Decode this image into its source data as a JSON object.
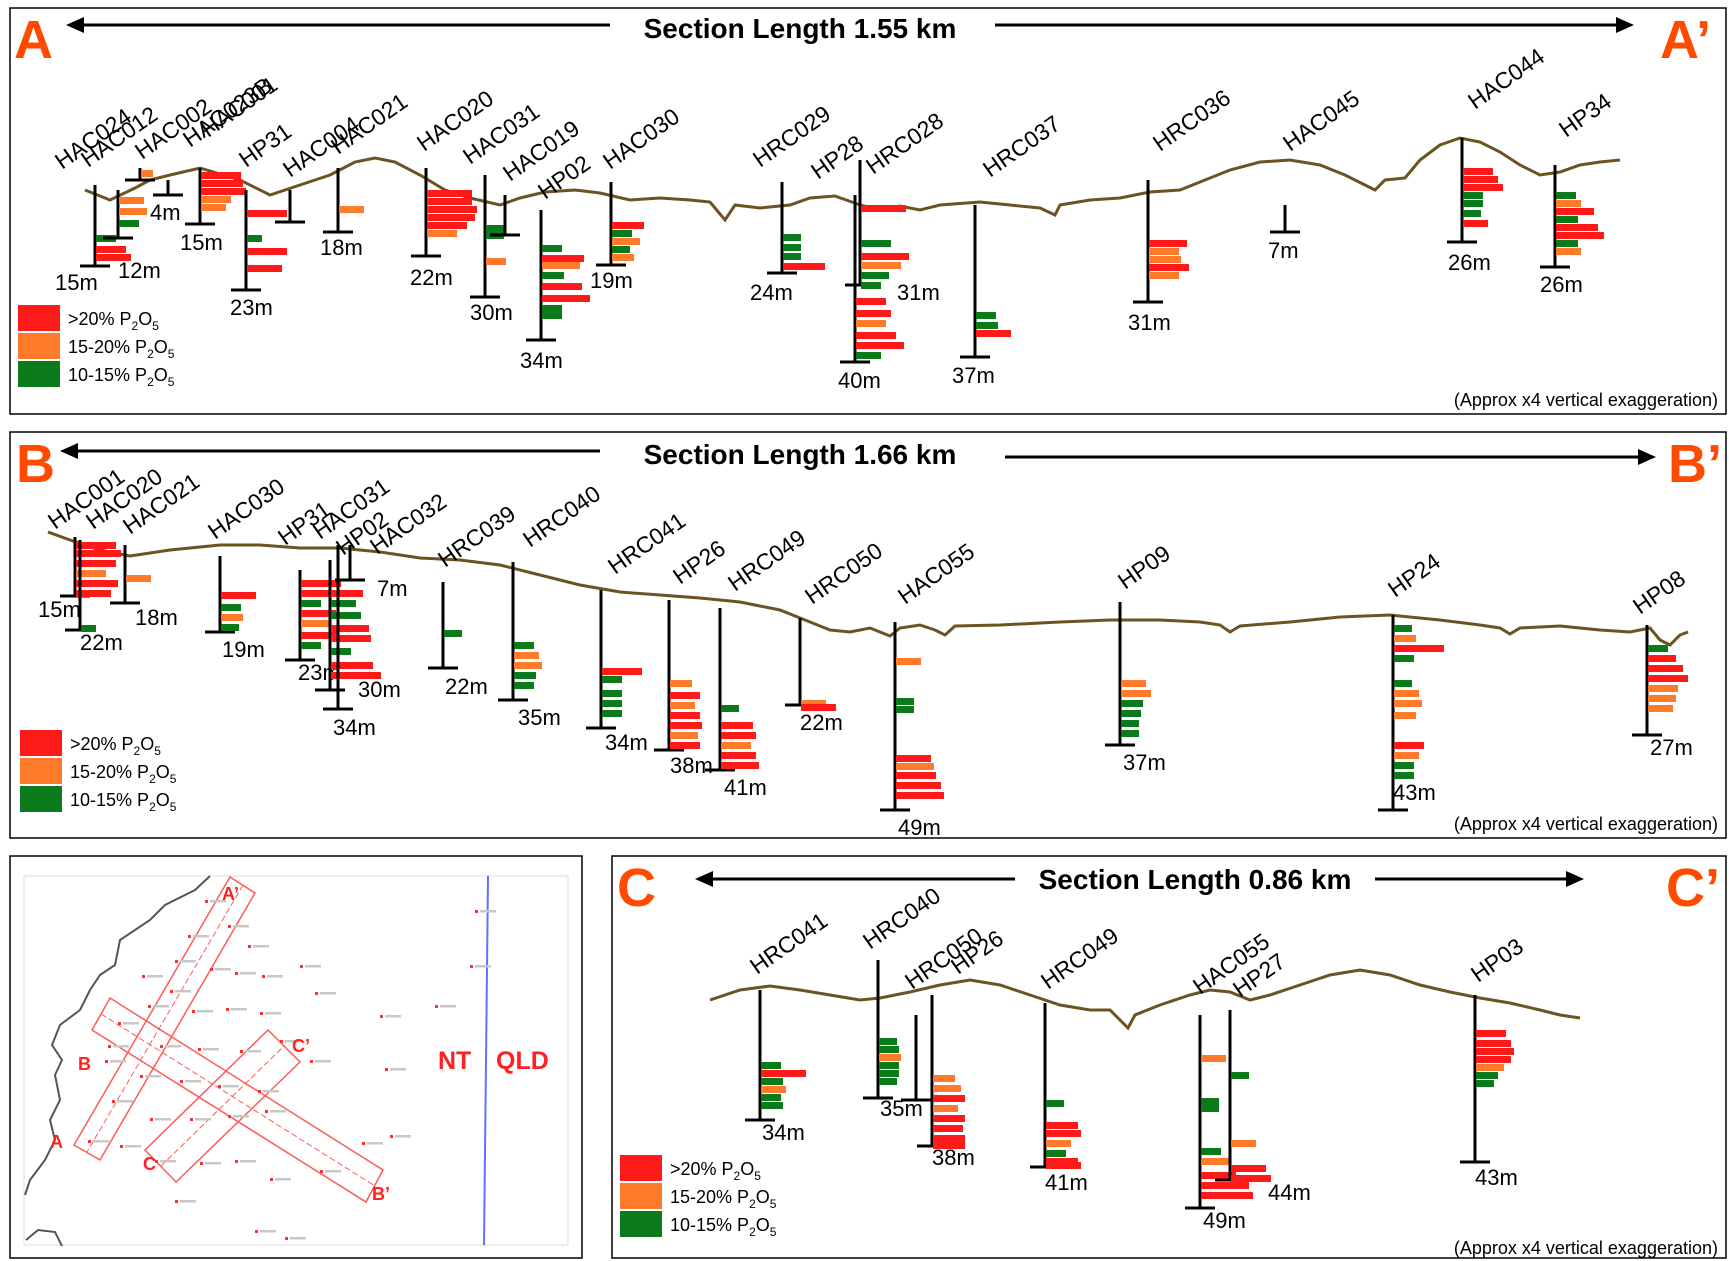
{
  "colors": {
    "high": "#ff1a1a",
    "mid": "#ff7a2a",
    "low": "#0a7a1a",
    "ground": "#6b5322",
    "label": "#ff4a00",
    "map_red": "#ff2020",
    "border_blue": "#6070ff"
  },
  "legend": [
    {
      "key": "high",
      "label": ">20% P",
      "sub1": "2",
      "mid": "O",
      "sub2": "5"
    },
    {
      "key": "mid",
      "label": "15-20% P",
      "sub1": "2",
      "mid": "O",
      "sub2": "5"
    },
    {
      "key": "low",
      "label": "10-15% P",
      "sub1": "2",
      "mid": "O",
      "sub2": "5"
    }
  ],
  "vertical_note": "(Approx x4 vertical exaggeration)",
  "sections": [
    {
      "start": "A",
      "end": "A’",
      "title": "Section Length 1.55 km",
      "holes": [
        {
          "name": "HAC024",
          "depth": "15m"
        },
        {
          "name": "HAC012",
          "depth": "12m"
        },
        {
          "name": "HAC002",
          "depth": ""
        },
        {
          "name": "HAC023B",
          "depth": "4m"
        },
        {
          "name": "HAC001",
          "depth": "15m"
        },
        {
          "name": "HP31",
          "depth": "23m"
        },
        {
          "name": "HAC004",
          "depth": ""
        },
        {
          "name": "HAC021",
          "depth": "18m"
        },
        {
          "name": "HAC020",
          "depth": "22m"
        },
        {
          "name": "HAC031",
          "depth": "30m"
        },
        {
          "name": "HAC019",
          "depth": ""
        },
        {
          "name": "HP02",
          "depth": "34m"
        },
        {
          "name": "HAC030",
          "depth": "19m"
        },
        {
          "name": "HRC029",
          "depth": "24m"
        },
        {
          "name": "HP28",
          "depth": "31m"
        },
        {
          "name": "HRC028",
          "depth": "40m"
        },
        {
          "name": "HRC037",
          "depth": "37m"
        },
        {
          "name": "HRC036",
          "depth": "31m"
        },
        {
          "name": "HAC045",
          "depth": "7m"
        },
        {
          "name": "HAC044",
          "depth": "26m"
        },
        {
          "name": "HP34",
          "depth": "26m"
        }
      ]
    },
    {
      "start": "B",
      "end": "B’",
      "title": "Section Length 1.66 km",
      "holes": [
        {
          "name": "HAC001",
          "depth": "15m"
        },
        {
          "name": "HAC020",
          "depth": "22m"
        },
        {
          "name": "HAC021",
          "depth": "18m"
        },
        {
          "name": "HAC030",
          "depth": "19m"
        },
        {
          "name": "HP31",
          "depth": "23m"
        },
        {
          "name": "HAC031",
          "depth": "30m"
        },
        {
          "name": "HP02",
          "depth": "34m"
        },
        {
          "name": "HAC032",
          "depth": "7m"
        },
        {
          "name": "HRC039",
          "depth": "22m"
        },
        {
          "name": "HRC040",
          "depth": "35m"
        },
        {
          "name": "HRC041",
          "depth": "34m"
        },
        {
          "name": "HP26",
          "depth": "38m"
        },
        {
          "name": "HRC049",
          "depth": "41m"
        },
        {
          "name": "HRC050",
          "depth": "22m"
        },
        {
          "name": "HAC055",
          "depth": "49m"
        },
        {
          "name": "HP09",
          "depth": "37m"
        },
        {
          "name": "HP24",
          "depth": "43m"
        },
        {
          "name": "HP08",
          "depth": "27m"
        }
      ]
    },
    {
      "start": "C",
      "end": "C’",
      "title": "Section Length 0.86 km",
      "holes": [
        {
          "name": "HRC041",
          "depth": "34m"
        },
        {
          "name": "HRC040",
          "depth": "35m"
        },
        {
          "name": "HRC050",
          "depth": ""
        },
        {
          "name": "HP26",
          "depth": "38m"
        },
        {
          "name": "HRC049",
          "depth": "41m"
        },
        {
          "name": "HAC055",
          "depth": "49m"
        },
        {
          "name": "HP27",
          "depth": "44m"
        },
        {
          "name": "HP03",
          "depth": "43m"
        }
      ]
    }
  ],
  "map": {
    "labels": {
      "a_start": "A",
      "a_end": "A’",
      "b_start": "B",
      "b_end": "B’",
      "c_start": "C",
      "c_end": "C’"
    },
    "state_left": "NT",
    "state_right": "QLD"
  }
}
